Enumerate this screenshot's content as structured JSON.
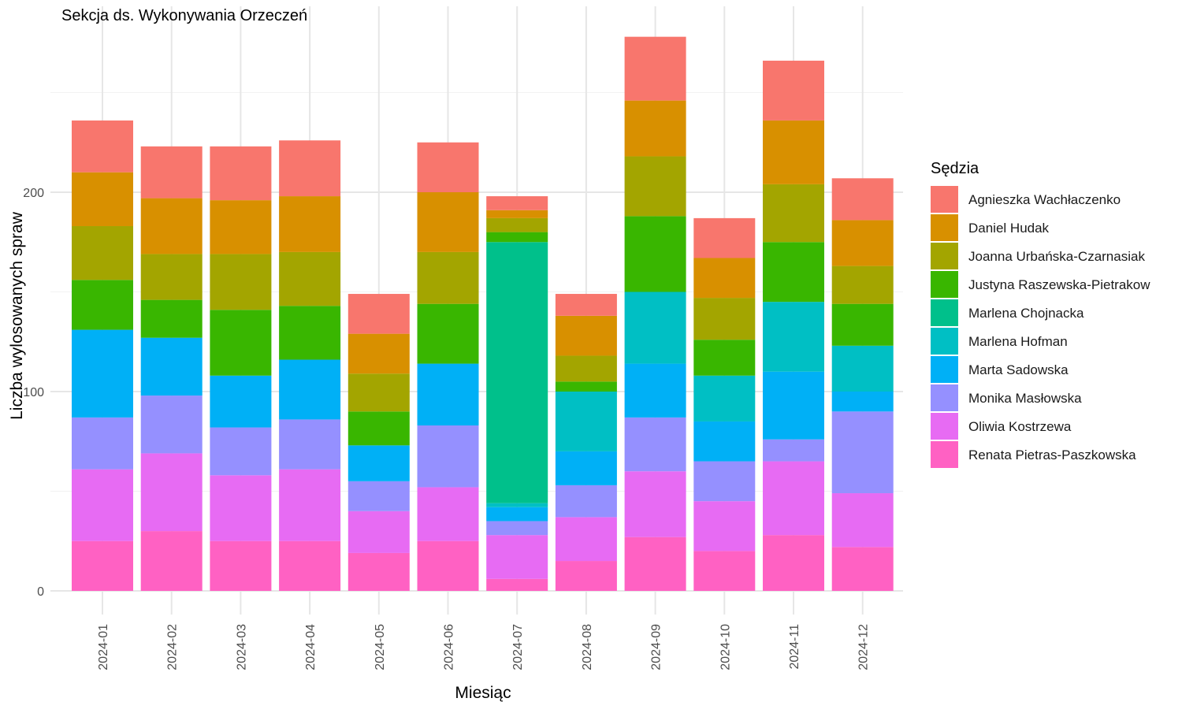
{
  "chart_data": {
    "type": "bar",
    "stacked": true,
    "title": "Sekcja ds. Wykonywania Orzeczeń",
    "xlabel": "Miesiąc",
    "ylabel": "Liczba wylosowanych spraw",
    "ylim": [
      0,
      290
    ],
    "y_ticks": [
      0,
      100,
      200
    ],
    "grid": true,
    "legend_title": "Sędzia",
    "legend_position": "right",
    "categories": [
      "2024-01",
      "2024-02",
      "2024-03",
      "2024-04",
      "2024-05",
      "2024-06",
      "2024-07",
      "2024-08",
      "2024-09",
      "2024-10",
      "2024-11",
      "2024-12"
    ],
    "series": [
      {
        "name": "Renata Pietras-Paszkowska",
        "color": "#FF61C3",
        "values": [
          25,
          30,
          25,
          25,
          19,
          25,
          6,
          15,
          27,
          20,
          28,
          22
        ]
      },
      {
        "name": "Oliwia Kostrzewa",
        "color": "#E76BF3",
        "values": [
          36,
          39,
          33,
          36,
          21,
          27,
          22,
          22,
          33,
          25,
          37,
          27
        ]
      },
      {
        "name": "Monika Masłowska",
        "color": "#9590FF",
        "values": [
          26,
          29,
          24,
          25,
          15,
          31,
          7,
          16,
          27,
          20,
          11,
          41
        ]
      },
      {
        "name": "Marta Sadowska",
        "color": "#00B0F6",
        "values": [
          44,
          29,
          26,
          30,
          18,
          31,
          7,
          17,
          27,
          20,
          34,
          10
        ]
      },
      {
        "name": "Marlena Hofman",
        "color": "#00BFC4",
        "values": [
          0,
          0,
          0,
          0,
          0,
          0,
          2,
          30,
          36,
          23,
          35,
          23
        ]
      },
      {
        "name": "Marlena Chojnacka",
        "color": "#00C08B",
        "values": [
          0,
          0,
          0,
          0,
          0,
          0,
          131,
          0,
          0,
          0,
          0,
          0
        ]
      },
      {
        "name": "Justyna Raszewska-Pietrakow",
        "color": "#39B600",
        "values": [
          25,
          19,
          33,
          27,
          17,
          30,
          5,
          5,
          38,
          18,
          30,
          21
        ]
      },
      {
        "name": "Joanna Urbańska-Czarnasiak",
        "color": "#A3A500",
        "values": [
          27,
          23,
          28,
          27,
          19,
          26,
          7,
          13,
          30,
          21,
          29,
          19
        ]
      },
      {
        "name": "Daniel Hudak",
        "color": "#D89000",
        "values": [
          27,
          28,
          27,
          28,
          20,
          30,
          4,
          20,
          28,
          20,
          32,
          23
        ]
      },
      {
        "name": "Agnieszka Wachłaczenko",
        "color": "#F8766D",
        "values": [
          26,
          26,
          27,
          28,
          20,
          25,
          7,
          11,
          32,
          20,
          30,
          21
        ]
      }
    ]
  }
}
